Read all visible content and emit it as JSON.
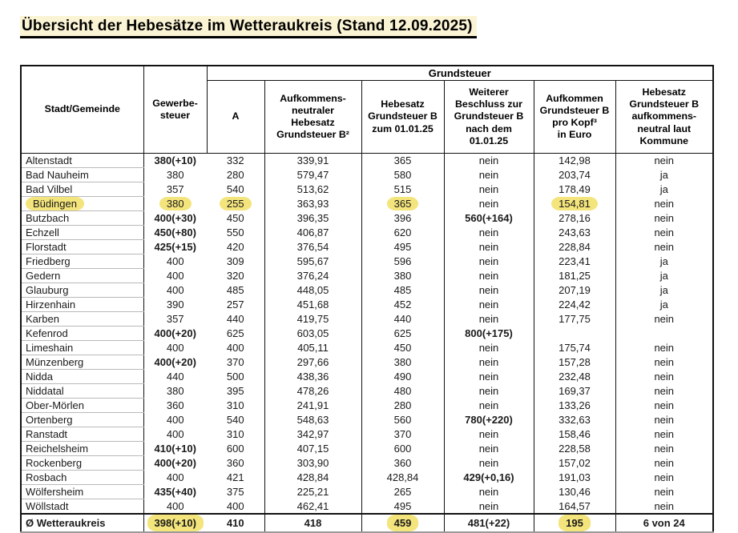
{
  "title": "Übersicht der Hebesätze im Wetteraukreis (Stand 12.09.2025)",
  "colors": {
    "highlight": "#f3e47c",
    "title_background": "#fbf4d4"
  },
  "table": {
    "group_header": "Grundsteuer",
    "columns": [
      "Stadt/Gemeinde",
      "Gewerbe-\nsteuer",
      "A",
      "Aufkommens-\nneutraler\nHebesatz\nGrundsteuer B²",
      "Hebesatz\nGrundsteuer B\nzum 01.01.25",
      "Weiterer\nBeschluss zur\nGrundsteuer B\nnach dem\n01.01.25",
      "Aufkommen\nGrundsteuer B\npro Kopf³\nin Euro",
      "Hebesatz\nGrundsteuer B\naufkommens-\nneutral laut\nKommune"
    ],
    "rows": [
      [
        "Altenstadt",
        "380(+10)",
        "332",
        "339,91",
        "365",
        "nein",
        "142,98",
        "nein"
      ],
      [
        "Bad Nauheim",
        "380",
        "280",
        "579,47",
        "580",
        "nein",
        "203,74",
        "ja"
      ],
      [
        "Bad Vilbel",
        "357",
        "540",
        "513,62",
        "515",
        "nein",
        "178,49",
        "ja"
      ],
      [
        "Büdingen",
        "380",
        "255",
        "363,93",
        "365",
        "nein",
        "154,81",
        "nein"
      ],
      [
        "Butzbach",
        "400(+30)",
        "450",
        "396,35",
        "396",
        "560(+164)",
        "278,16",
        "nein"
      ],
      [
        "Echzell",
        "450(+80)",
        "550",
        "406,87",
        "620",
        "nein",
        "243,63",
        "nein"
      ],
      [
        "Florstadt",
        "425(+15)",
        "420",
        "376,54",
        "495",
        "nein",
        "228,84",
        "nein"
      ],
      [
        "Friedberg",
        "400",
        "309",
        "595,67",
        "596",
        "nein",
        "223,41",
        "ja"
      ],
      [
        "Gedern",
        "400",
        "320",
        "376,24",
        "380",
        "nein",
        "181,25",
        "ja"
      ],
      [
        "Glauburg",
        "400",
        "485",
        "448,05",
        "485",
        "nein",
        "207,19",
        "ja"
      ],
      [
        "Hirzenhain",
        "390",
        "257",
        "451,68",
        "452",
        "nein",
        "224,42",
        "ja"
      ],
      [
        "Karben",
        "357",
        "440",
        "419,75",
        "440",
        "nein",
        "177,75",
        "nein"
      ],
      [
        "Kefenrod",
        "400(+20)",
        "625",
        "603,05",
        "625",
        "800(+175)",
        "",
        ""
      ],
      [
        "Limeshain",
        "400",
        "400",
        "405,11",
        "450",
        "nein",
        "175,74",
        "nein"
      ],
      [
        "Münzenberg",
        "400(+20)",
        "370",
        "297,66",
        "380",
        "nein",
        "157,28",
        "nein"
      ],
      [
        "Nidda",
        "440",
        "500",
        "438,36",
        "490",
        "nein",
        "232,48",
        "nein"
      ],
      [
        "Niddatal",
        "380",
        "395",
        "478,26",
        "480",
        "nein",
        "169,37",
        "nein"
      ],
      [
        "Ober-Mörlen",
        "360",
        "310",
        "241,91",
        "280",
        "nein",
        "133,26",
        "nein"
      ],
      [
        "Ortenberg",
        "400",
        "540",
        "548,63",
        "560",
        "780(+220)",
        "332,63",
        "nein"
      ],
      [
        "Ranstadt",
        "400",
        "310",
        "342,97",
        "370",
        "nein",
        "158,46",
        "nein"
      ],
      [
        "Reichelsheim",
        "410(+10)",
        "600",
        "407,15",
        "600",
        "nein",
        "228,58",
        "nein"
      ],
      [
        "Rockenberg",
        "400(+20)",
        "360",
        "303,90",
        "360",
        "nein",
        "157,02",
        "nein"
      ],
      [
        "Rosbach",
        "400",
        "421",
        "428,84",
        "428,84",
        "429(+0,16)",
        "191,03",
        "nein"
      ],
      [
        "Wölfersheim",
        "435(+40)",
        "375",
        "225,21",
        "265",
        "nein",
        "130,46",
        "nein"
      ],
      [
        "Wöllstadt",
        "400",
        "400",
        "462,41",
        "495",
        "nein",
        "164,57",
        "nein"
      ]
    ],
    "total_row": [
      "Ø Wetteraukreis",
      "398(+10)",
      "410",
      "418",
      "459",
      "481(+22)",
      "195",
      "6 von 24"
    ],
    "highlights": [
      {
        "row": 3,
        "cols": [
          0,
          1,
          2,
          4,
          6
        ]
      },
      {
        "row": "total",
        "cols": [
          1,
          4,
          6
        ]
      }
    ]
  }
}
